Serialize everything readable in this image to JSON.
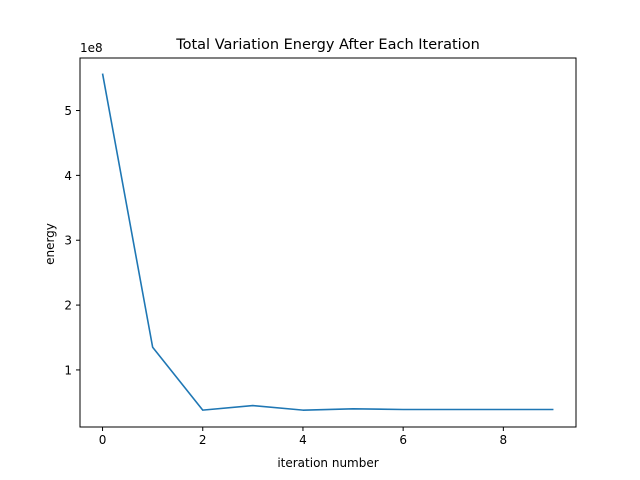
{
  "chart_data": {
    "type": "line",
    "title": "Total Variation Energy After Each Iteration",
    "xlabel": "iteration number",
    "ylabel": "energy",
    "y_offset_label": "1e8",
    "y_scale_factor": 100000000,
    "xlim": [
      -0.45,
      9.45
    ],
    "ylim": [
      12000000,
      581000000
    ],
    "x_ticks": [
      0,
      2,
      4,
      6,
      8
    ],
    "x_tick_labels": [
      "0",
      "2",
      "4",
      "6",
      "8"
    ],
    "y_ticks": [
      100000000,
      200000000,
      300000000,
      400000000,
      500000000
    ],
    "y_tick_labels": [
      "1",
      "2",
      "3",
      "4",
      "5"
    ],
    "grid": false,
    "legend": "none",
    "series": [
      {
        "color": "#1f77b4",
        "x": [
          0,
          1,
          2,
          3,
          4,
          5,
          6,
          7,
          8,
          9
        ],
        "y": [
          557000000,
          135000000,
          38000000,
          45000000,
          38000000,
          40000000,
          39000000,
          39000000,
          39000000,
          39000000
        ]
      }
    ]
  }
}
